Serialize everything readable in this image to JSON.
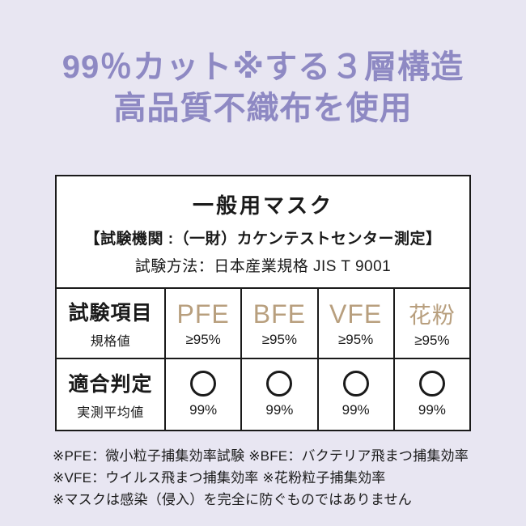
{
  "colors": {
    "background": "#e8e6f2",
    "heading": "#8e89c3",
    "metric_accent": "#b89f7e",
    "text": "#1a1a1a",
    "table_background": "#ffffff",
    "table_border": "#1a1a1a"
  },
  "heading": {
    "line1": "99％カット※する３層構造",
    "line2": "高品質不織布を使用"
  },
  "table": {
    "title": "一般用マスク",
    "agency": "【試験機関 :（一財）カケンテストセンター測定】",
    "method": "試験方法：日本産業規格 JIS T 9001",
    "criteria_row": {
      "label": "試験項目",
      "sublabel": "規格値",
      "columns": [
        {
          "name": "PFE",
          "standard": "≥95%"
        },
        {
          "name": "BFE",
          "standard": "≥95%"
        },
        {
          "name": "VFE",
          "standard": "≥95%"
        },
        {
          "name": "花粉",
          "standard": "≥95%"
        }
      ]
    },
    "result_row": {
      "label": "適合判定",
      "sublabel": "実測平均値",
      "results": [
        {
          "mark": "circle-pass",
          "value": "99%"
        },
        {
          "mark": "circle-pass",
          "value": "99%"
        },
        {
          "mark": "circle-pass",
          "value": "99%"
        },
        {
          "mark": "circle-pass",
          "value": "99%"
        }
      ]
    }
  },
  "footnotes": [
    "※PFE：微小粒子捕集効率試験 ※BFE：バクテリア飛まつ捕集効率",
    "※VFE：ウイルス飛まつ捕集効率 ※花粉粒子捕集効率",
    "※マスクは感染（侵入）を完全に防ぐものではありません"
  ],
  "chart_data": {
    "type": "table",
    "title": "一般用マスク",
    "subtitle": "【試験機関 :（一財）カケンテストセンター測定】 試験方法：日本産業規格 JIS T 9001",
    "columns": [
      "試験項目",
      "PFE",
      "BFE",
      "VFE",
      "花粉"
    ],
    "rows": [
      {
        "label": "規格値",
        "values": [
          "≥95%",
          "≥95%",
          "≥95%",
          "≥95%"
        ]
      },
      {
        "label": "適合判定（実測平均値）",
        "values": [
          "○ 99%",
          "○ 99%",
          "○ 99%",
          "○ 99%"
        ]
      }
    ]
  }
}
